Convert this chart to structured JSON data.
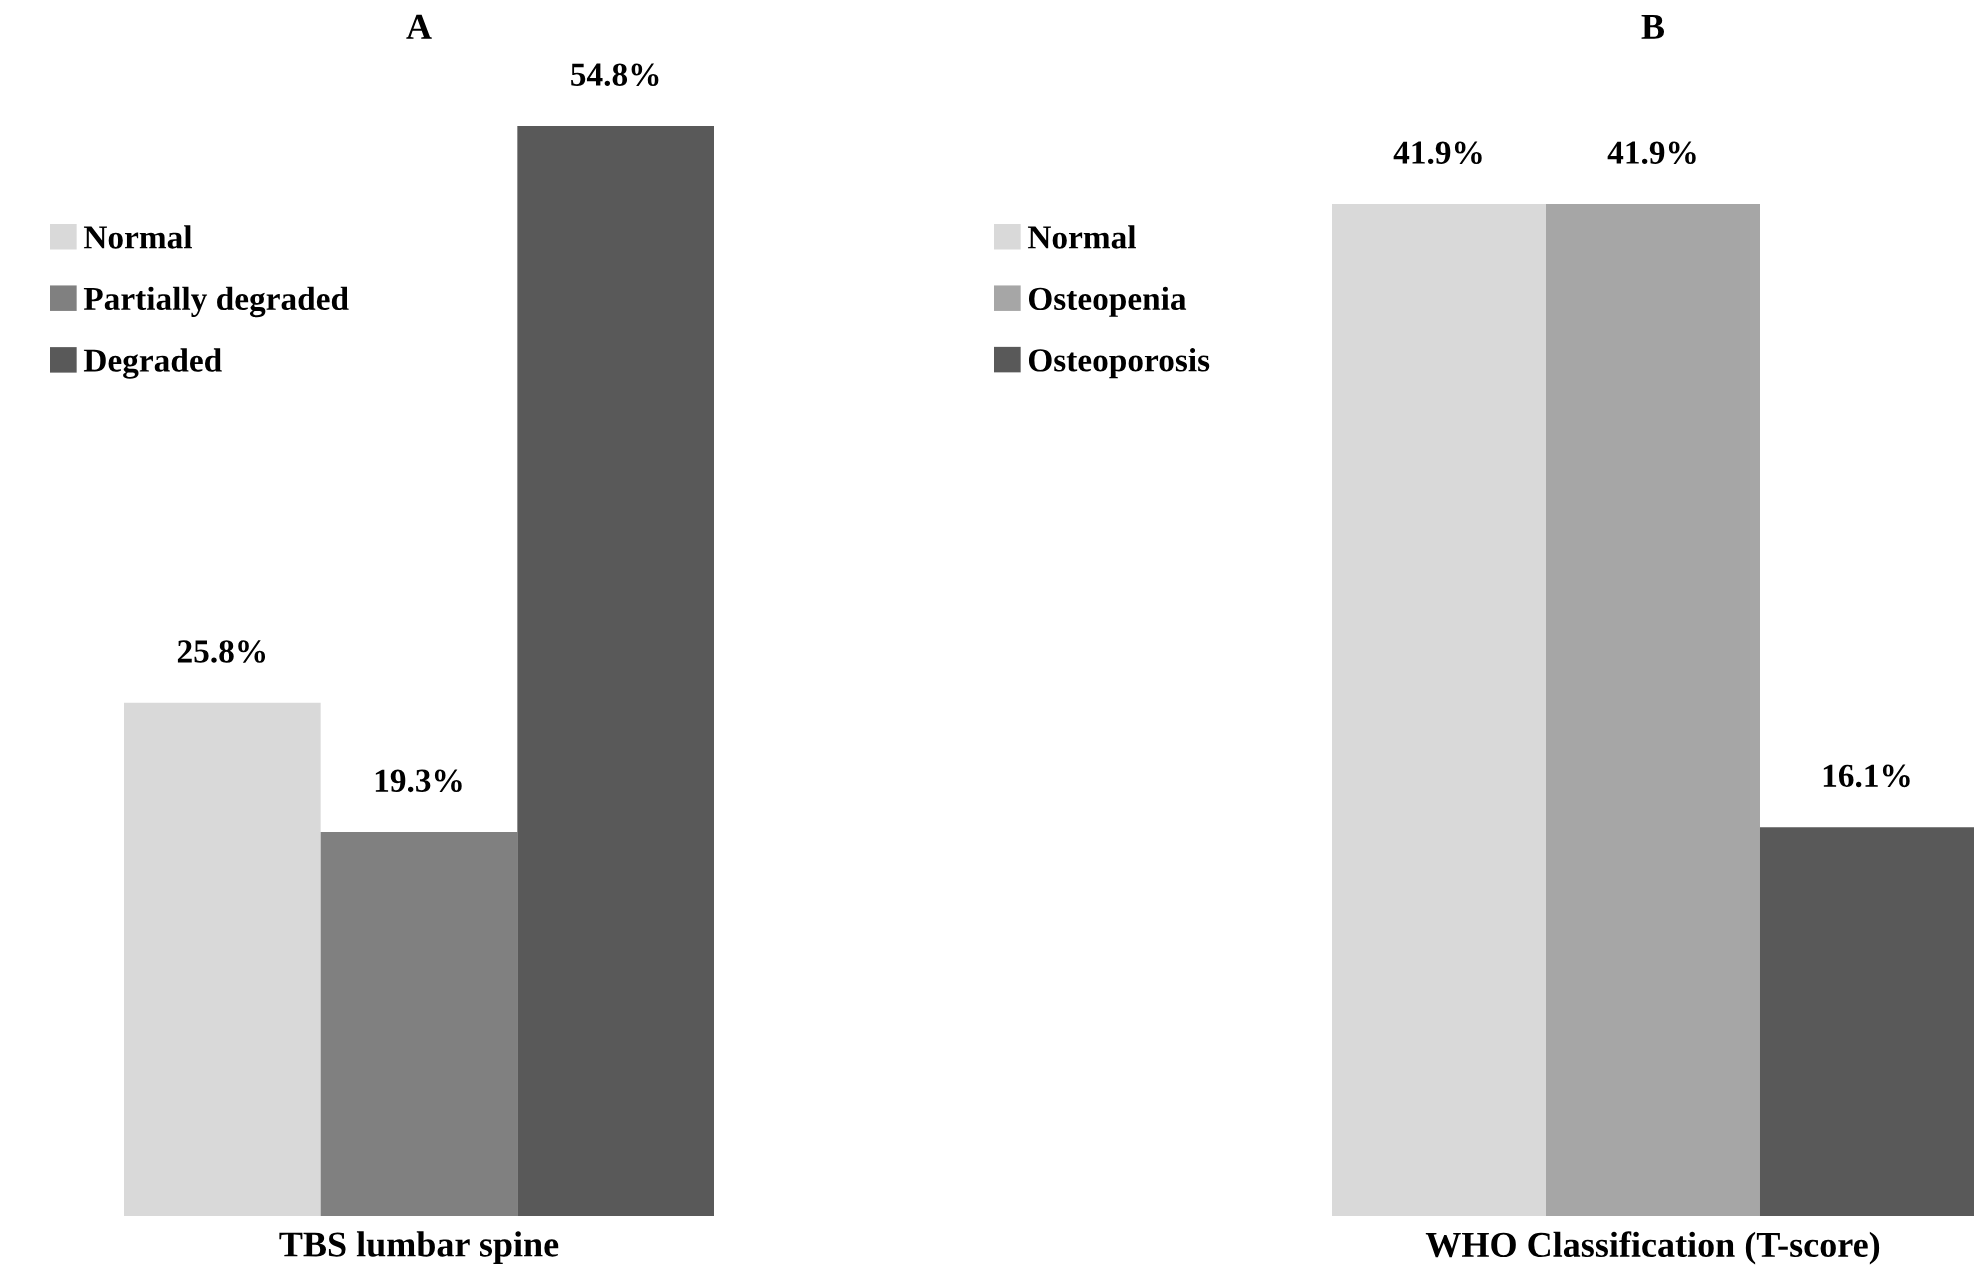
{
  "chart_data": [
    {
      "type": "bar",
      "title": "A",
      "xlabel": "TBS lumbar spine",
      "categories": [
        null
      ],
      "legend": "top left",
      "series": [
        {
          "name": "Normal",
          "color": "#d9d9d9",
          "values": [
            25.8
          ],
          "value_labels": [
            "25.8%"
          ]
        },
        {
          "name": "Partially degraded",
          "color": "#808080",
          "values": [
            19.3
          ],
          "value_labels": [
            "19.3%"
          ]
        },
        {
          "name": "Degraded",
          "color": "#595959",
          "values": [
            54.8
          ],
          "value_labels": [
            "54.8%"
          ]
        }
      ]
    },
    {
      "type": "bar",
      "title": "B",
      "xlabel": "WHO Classification (T-score)",
      "categories": [
        null
      ],
      "legend": "top left",
      "series": [
        {
          "name": "Normal",
          "color": "#d9d9d9",
          "values": [
            41.9
          ],
          "value_labels": [
            "41.9%"
          ]
        },
        {
          "name": "Osteopenia",
          "color": "#a6a6a6",
          "values": [
            41.9
          ],
          "value_labels": [
            "41.9%"
          ]
        },
        {
          "name": "Osteoporosis",
          "color": "#595959",
          "values": [
            16.1
          ],
          "value_labels": [
            "16.1%"
          ]
        }
      ]
    }
  ]
}
